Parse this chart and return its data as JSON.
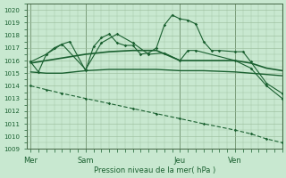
{
  "bg_color": "#c8e8d0",
  "grid_color": "#99bb99",
  "line_color": "#1a6030",
  "spine_color": "#446644",
  "xlabel": "Pression niveau de la mer( hPa )",
  "ylim": [
    1009,
    1020.5
  ],
  "yticks": [
    1009,
    1010,
    1011,
    1012,
    1013,
    1014,
    1015,
    1016,
    1017,
    1018,
    1019,
    1020
  ],
  "xtick_labels": [
    "Mer",
    "Sam",
    "Jeu",
    "Ven"
  ],
  "xtick_positions": [
    0,
    7,
    19,
    26
  ],
  "vline_positions": [
    0,
    7,
    19,
    26
  ],
  "xlim": [
    -0.5,
    32
  ],
  "smooth1_x": [
    0,
    2,
    4,
    7,
    10,
    13,
    16,
    19,
    20,
    21,
    22,
    23,
    24,
    26,
    28,
    30,
    32
  ],
  "smooth1_y": [
    1015.8,
    1016.0,
    1016.2,
    1016.5,
    1016.7,
    1016.8,
    1016.8,
    1016.0,
    1016.0,
    1016.0,
    1016.0,
    1016.0,
    1016.0,
    1016.0,
    1015.8,
    1015.4,
    1015.2
  ],
  "smooth2_x": [
    0,
    2,
    4,
    7,
    10,
    13,
    16,
    19,
    22,
    26,
    28,
    30,
    32
  ],
  "smooth2_y": [
    1015.1,
    1015.0,
    1015.0,
    1015.2,
    1015.3,
    1015.3,
    1015.3,
    1015.2,
    1015.2,
    1015.1,
    1015.0,
    1014.9,
    1014.8
  ],
  "zigzag1_x": [
    0,
    1,
    2,
    3,
    4,
    5,
    7,
    8,
    9,
    10,
    11,
    12,
    13,
    14,
    15,
    16,
    17,
    18,
    19,
    20,
    21,
    22,
    23,
    24,
    26,
    27,
    28,
    30,
    32
  ],
  "zigzag1_y": [
    1015.9,
    1015.1,
    1016.5,
    1017.0,
    1017.3,
    1017.5,
    1015.2,
    1017.1,
    1017.8,
    1018.1,
    1017.4,
    1017.2,
    1017.2,
    1016.5,
    1016.6,
    1017.0,
    1018.8,
    1019.6,
    1019.3,
    1019.2,
    1018.9,
    1017.5,
    1016.8,
    1016.8,
    1016.7,
    1016.7,
    1015.9,
    1014.2,
    1013.4
  ],
  "zigzag2_x": [
    0,
    2,
    4,
    7,
    9,
    11,
    13,
    15,
    17,
    19,
    20,
    21,
    26,
    28,
    30,
    32
  ],
  "zigzag2_y": [
    1015.9,
    1016.5,
    1017.3,
    1015.3,
    1017.4,
    1018.1,
    1017.4,
    1016.5,
    1016.6,
    1016.0,
    1016.8,
    1016.8,
    1016.0,
    1015.4,
    1014.0,
    1013.0
  ],
  "diag_x": [
    0,
    2,
    4,
    7,
    10,
    13,
    16,
    19,
    22,
    26,
    28,
    30,
    32
  ],
  "diag_y": [
    1014.0,
    1013.7,
    1013.4,
    1013.0,
    1012.6,
    1012.2,
    1011.8,
    1011.4,
    1011.0,
    1010.5,
    1010.2,
    1009.8,
    1009.5
  ]
}
